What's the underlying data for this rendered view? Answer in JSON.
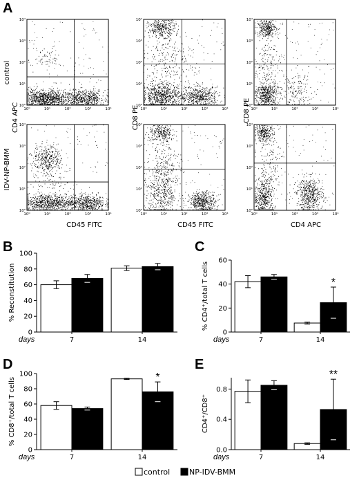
{
  "panel_labels": {
    "a": "A",
    "b": "B",
    "c": "C",
    "d": "D",
    "e": "E"
  },
  "flow": {
    "row_labels": [
      "control",
      "IDV-NP-BMM"
    ],
    "y_labels": [
      "CD4 APC",
      "CD8 PE",
      "CD8 PE"
    ],
    "x_labels": [
      "CD45 FITC",
      "CD45 FITC",
      "CD4 APC"
    ],
    "tick_labels": [
      "10⁰",
      "10¹",
      "10²",
      "10³",
      "10⁴"
    ]
  },
  "legend": {
    "control": "control",
    "treated": "NP-IDV-BMM",
    "control_color": "#ffffff",
    "treated_color": "#000000"
  },
  "days_label": "days",
  "chart_data": [
    {
      "id": "B",
      "type": "bar",
      "ylabel": "% Reconstitution",
      "categories": [
        "7",
        "14"
      ],
      "ylim": [
        0,
        100
      ],
      "yticks": [
        0,
        20,
        40,
        60,
        80,
        100
      ],
      "tick_labels": [
        "0",
        "20",
        "40",
        "60",
        "80",
        "100"
      ],
      "series": [
        {
          "name": "control",
          "values": [
            60,
            81
          ],
          "errors": [
            5,
            3
          ]
        },
        {
          "name": "NP-IDV-BMM",
          "values": [
            68,
            83
          ],
          "errors": [
            5,
            4
          ]
        }
      ],
      "annotations": []
    },
    {
      "id": "C",
      "type": "bar",
      "ylabel": "% CD4⁺/total T cells",
      "categories": [
        "7",
        "14"
      ],
      "ylim": [
        0,
        60
      ],
      "yticks": [
        0,
        20,
        40,
        60
      ],
      "tick_labels": [
        "0",
        "20",
        "40",
        "60"
      ],
      "series": [
        {
          "name": "control",
          "values": [
            42,
            7.5
          ],
          "errors": [
            5,
            0.8
          ]
        },
        {
          "name": "NP-IDV-BMM",
          "values": [
            46,
            24.5
          ],
          "errors": [
            2,
            13
          ]
        }
      ],
      "annotations": [
        {
          "category": "14",
          "text": "*"
        }
      ]
    },
    {
      "id": "D",
      "type": "bar",
      "ylabel": "% CD8⁺/total T cells",
      "categories": [
        "7",
        "14"
      ],
      "ylim": [
        0,
        100
      ],
      "yticks": [
        0,
        20,
        40,
        60,
        80,
        100
      ],
      "tick_labels": [
        "0",
        "20",
        "40",
        "60",
        "80",
        "100"
      ],
      "series": [
        {
          "name": "control",
          "values": [
            58,
            93
          ],
          "errors": [
            5,
            0.8
          ]
        },
        {
          "name": "NP-IDV-BMM",
          "values": [
            54,
            76
          ],
          "errors": [
            2,
            13
          ]
        }
      ],
      "annotations": [
        {
          "category": "14",
          "text": "*"
        }
      ]
    },
    {
      "id": "E",
      "type": "bar",
      "ylabel": "CD4⁺/CD8⁺",
      "categories": [
        "7",
        "14"
      ],
      "ylim": [
        0,
        0.95
      ],
      "yticks": [
        0,
        0.4,
        0.8
      ],
      "tick_labels": [
        "0.0",
        "0.4",
        "0.8"
      ],
      "series": [
        {
          "name": "control",
          "values": [
            0.77,
            0.08
          ],
          "errors": [
            0.15,
            0.01
          ]
        },
        {
          "name": "NP-IDV-BMM",
          "values": [
            0.85,
            0.53
          ],
          "errors": [
            0.06,
            0.4
          ]
        }
      ],
      "annotations": [
        {
          "category": "14",
          "text": "**"
        }
      ]
    }
  ]
}
